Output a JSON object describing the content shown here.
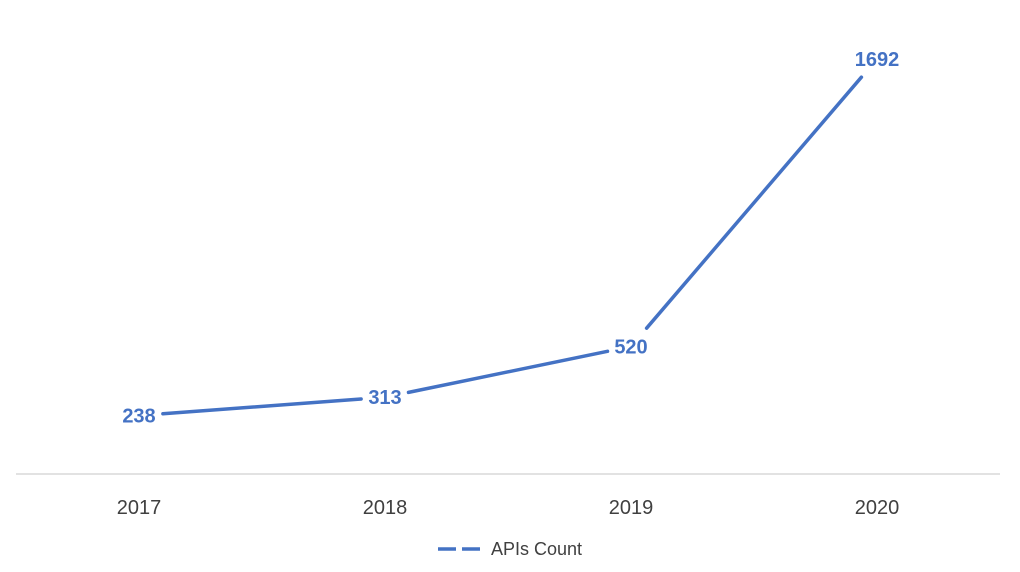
{
  "chart_data": {
    "type": "line",
    "categories": [
      "2017",
      "2018",
      "2019",
      "2020"
    ],
    "series": [
      {
        "name": "APIs Count",
        "values": [
          238,
          313,
          520,
          1692
        ],
        "color": "#4472C4"
      }
    ],
    "title": "",
    "xlabel": "",
    "ylabel": "",
    "ylim": [
      0,
      1800
    ],
    "grid": false,
    "legend": "bottom",
    "data_labels": true,
    "axis_line_color": "#D9D9D9",
    "tick_label_color": "#404040"
  }
}
